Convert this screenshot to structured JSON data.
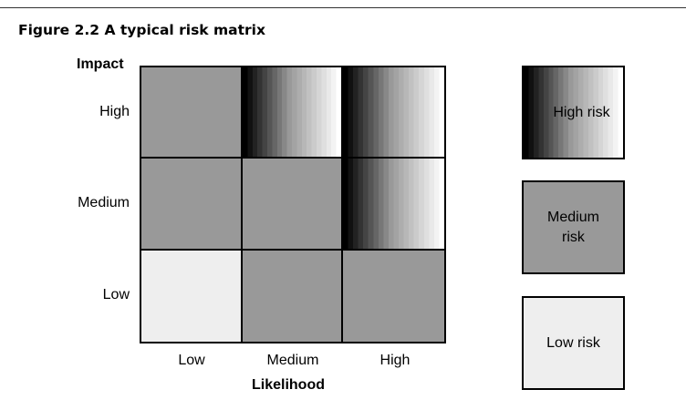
{
  "figure": {
    "title": "Figure 2.2 A typical risk matrix"
  },
  "y_axis": {
    "title": "Impact",
    "ticks": [
      "High",
      "Medium",
      "Low"
    ]
  },
  "x_axis": {
    "title": "Likelihood",
    "ticks": [
      "Low",
      "Medium",
      "High"
    ]
  },
  "matrix": {
    "rows": [
      {
        "impact": "High",
        "cells": [
          "medium",
          "high",
          "high"
        ]
      },
      {
        "impact": "Medium",
        "cells": [
          "medium",
          "medium",
          "high"
        ]
      },
      {
        "impact": "Low",
        "cells": [
          "low",
          "medium",
          "medium"
        ]
      }
    ]
  },
  "legend": [
    {
      "level": "high",
      "label": "High risk"
    },
    {
      "level": "medium",
      "label": "Medium risk"
    },
    {
      "level": "low",
      "label": "Low risk"
    }
  ],
  "colors": {
    "medium_fill": "#999999",
    "low_fill": "#eeeeee",
    "high_gradient_start": "#000000",
    "high_gradient_end": "#ffffff"
  }
}
